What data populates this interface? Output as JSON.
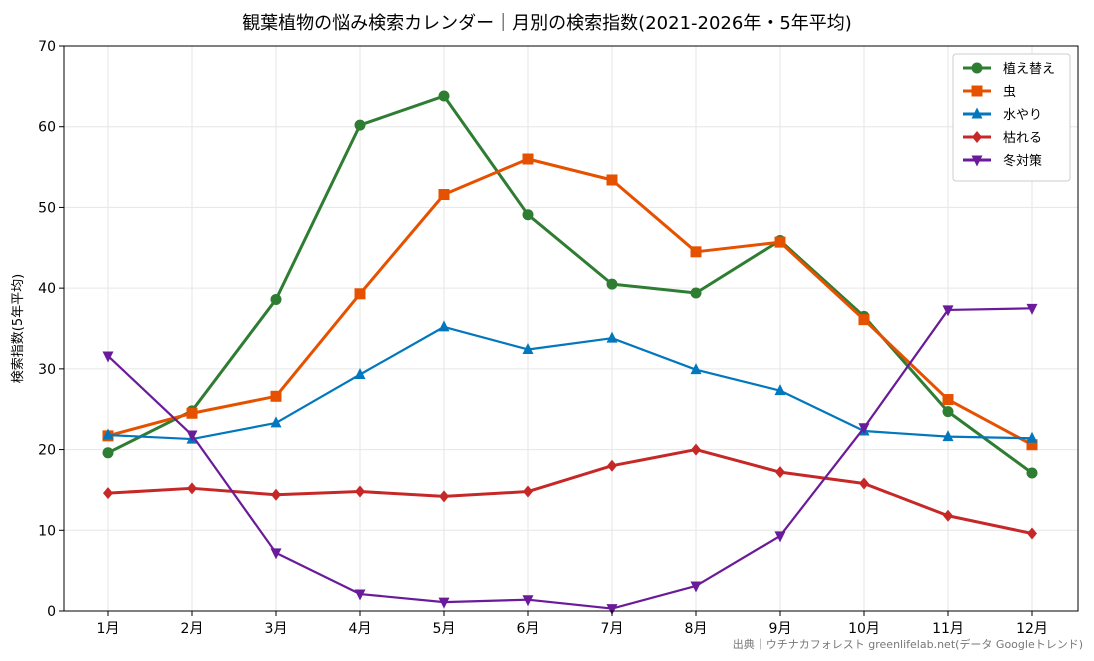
{
  "chart_data": {
    "type": "line",
    "title": "観葉植物の悩み検索カレンダー｜月別の検索指数(2021-2026年・5年平均)",
    "xlabel": "",
    "ylabel": "検索指数(5年平均)",
    "ylim": [
      0,
      70
    ],
    "yticks": [
      0,
      10,
      20,
      30,
      40,
      50,
      60,
      70
    ],
    "grid": true,
    "legend_position": "top-right",
    "categories": [
      "1月",
      "2月",
      "3月",
      "4月",
      "5月",
      "6月",
      "7月",
      "8月",
      "9月",
      "10月",
      "11月",
      "12月"
    ],
    "series": [
      {
        "name": "植え替え",
        "color": "#2e7d32",
        "marker": "circle",
        "values": [
          19.6,
          24.8,
          38.6,
          60.2,
          63.8,
          49.1,
          40.5,
          39.4,
          45.9,
          36.5,
          24.7,
          17.1
        ]
      },
      {
        "name": "虫",
        "color": "#e65100",
        "marker": "square",
        "values": [
          21.7,
          24.5,
          26.6,
          39.3,
          51.6,
          56.0,
          53.4,
          44.5,
          45.7,
          36.1,
          26.2,
          20.6
        ]
      },
      {
        "name": "水やり",
        "color": "#0277bd",
        "marker": "triangle-up",
        "values": [
          21.8,
          21.3,
          23.3,
          29.3,
          35.2,
          32.4,
          33.8,
          29.9,
          27.3,
          22.3,
          21.6,
          21.4
        ]
      },
      {
        "name": "枯れる",
        "color": "#c62828",
        "marker": "diamond",
        "values": [
          14.6,
          15.2,
          14.4,
          14.8,
          14.2,
          14.8,
          18.0,
          20.0,
          17.2,
          15.8,
          11.8,
          9.6
        ]
      },
      {
        "name": "冬対策",
        "color": "#6a1b9a",
        "marker": "triangle-down",
        "values": [
          31.6,
          21.8,
          7.2,
          2.1,
          1.1,
          1.4,
          0.3,
          3.1,
          9.3,
          22.7,
          37.3,
          37.5
        ]
      }
    ]
  },
  "footer": "出典｜ウチナカフォレスト greenlifelab.net(データ Googleトレンド)"
}
